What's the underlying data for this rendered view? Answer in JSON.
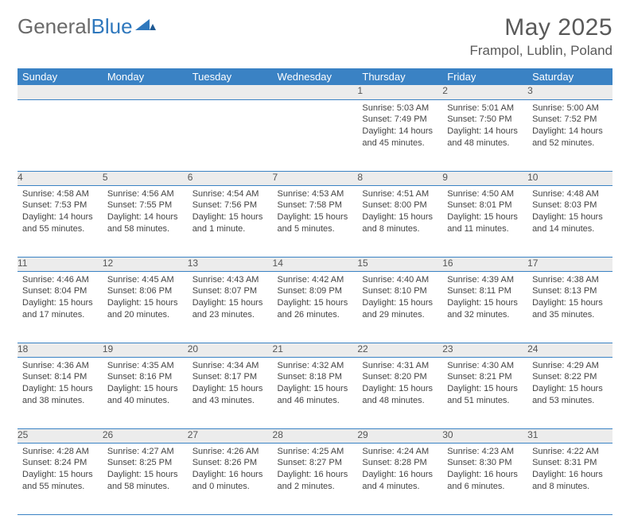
{
  "brand": {
    "part1": "General",
    "part2": "Blue"
  },
  "title": "May 2025",
  "location": "Frampol, Lublin, Poland",
  "colors": {
    "header_bg": "#3a82c4",
    "header_text": "#ffffff",
    "daynum_bg": "#ececec",
    "text": "#444444",
    "brand_gray": "#6a6a6a",
    "brand_blue": "#2f78bd",
    "divider": "#3a82c4"
  },
  "typography": {
    "title_fontsize": 30,
    "location_fontsize": 17,
    "header_fontsize": 13,
    "daynum_fontsize": 12,
    "body_fontsize": 11
  },
  "weekdays": [
    "Sunday",
    "Monday",
    "Tuesday",
    "Wednesday",
    "Thursday",
    "Friday",
    "Saturday"
  ],
  "weeks": [
    {
      "nums": [
        "",
        "",
        "",
        "",
        "1",
        "2",
        "3"
      ],
      "cells": [
        null,
        null,
        null,
        null,
        {
          "sunrise": "Sunrise: 5:03 AM",
          "sunset": "Sunset: 7:49 PM",
          "daylight": "Daylight: 14 hours and 45 minutes."
        },
        {
          "sunrise": "Sunrise: 5:01 AM",
          "sunset": "Sunset: 7:50 PM",
          "daylight": "Daylight: 14 hours and 48 minutes."
        },
        {
          "sunrise": "Sunrise: 5:00 AM",
          "sunset": "Sunset: 7:52 PM",
          "daylight": "Daylight: 14 hours and 52 minutes."
        }
      ]
    },
    {
      "nums": [
        "4",
        "5",
        "6",
        "7",
        "8",
        "9",
        "10"
      ],
      "cells": [
        {
          "sunrise": "Sunrise: 4:58 AM",
          "sunset": "Sunset: 7:53 PM",
          "daylight": "Daylight: 14 hours and 55 minutes."
        },
        {
          "sunrise": "Sunrise: 4:56 AM",
          "sunset": "Sunset: 7:55 PM",
          "daylight": "Daylight: 14 hours and 58 minutes."
        },
        {
          "sunrise": "Sunrise: 4:54 AM",
          "sunset": "Sunset: 7:56 PM",
          "daylight": "Daylight: 15 hours and 1 minute."
        },
        {
          "sunrise": "Sunrise: 4:53 AM",
          "sunset": "Sunset: 7:58 PM",
          "daylight": "Daylight: 15 hours and 5 minutes."
        },
        {
          "sunrise": "Sunrise: 4:51 AM",
          "sunset": "Sunset: 8:00 PM",
          "daylight": "Daylight: 15 hours and 8 minutes."
        },
        {
          "sunrise": "Sunrise: 4:50 AM",
          "sunset": "Sunset: 8:01 PM",
          "daylight": "Daylight: 15 hours and 11 minutes."
        },
        {
          "sunrise": "Sunrise: 4:48 AM",
          "sunset": "Sunset: 8:03 PM",
          "daylight": "Daylight: 15 hours and 14 minutes."
        }
      ]
    },
    {
      "nums": [
        "11",
        "12",
        "13",
        "14",
        "15",
        "16",
        "17"
      ],
      "cells": [
        {
          "sunrise": "Sunrise: 4:46 AM",
          "sunset": "Sunset: 8:04 PM",
          "daylight": "Daylight: 15 hours and 17 minutes."
        },
        {
          "sunrise": "Sunrise: 4:45 AM",
          "sunset": "Sunset: 8:06 PM",
          "daylight": "Daylight: 15 hours and 20 minutes."
        },
        {
          "sunrise": "Sunrise: 4:43 AM",
          "sunset": "Sunset: 8:07 PM",
          "daylight": "Daylight: 15 hours and 23 minutes."
        },
        {
          "sunrise": "Sunrise: 4:42 AM",
          "sunset": "Sunset: 8:09 PM",
          "daylight": "Daylight: 15 hours and 26 minutes."
        },
        {
          "sunrise": "Sunrise: 4:40 AM",
          "sunset": "Sunset: 8:10 PM",
          "daylight": "Daylight: 15 hours and 29 minutes."
        },
        {
          "sunrise": "Sunrise: 4:39 AM",
          "sunset": "Sunset: 8:11 PM",
          "daylight": "Daylight: 15 hours and 32 minutes."
        },
        {
          "sunrise": "Sunrise: 4:38 AM",
          "sunset": "Sunset: 8:13 PM",
          "daylight": "Daylight: 15 hours and 35 minutes."
        }
      ]
    },
    {
      "nums": [
        "18",
        "19",
        "20",
        "21",
        "22",
        "23",
        "24"
      ],
      "cells": [
        {
          "sunrise": "Sunrise: 4:36 AM",
          "sunset": "Sunset: 8:14 PM",
          "daylight": "Daylight: 15 hours and 38 minutes."
        },
        {
          "sunrise": "Sunrise: 4:35 AM",
          "sunset": "Sunset: 8:16 PM",
          "daylight": "Daylight: 15 hours and 40 minutes."
        },
        {
          "sunrise": "Sunrise: 4:34 AM",
          "sunset": "Sunset: 8:17 PM",
          "daylight": "Daylight: 15 hours and 43 minutes."
        },
        {
          "sunrise": "Sunrise: 4:32 AM",
          "sunset": "Sunset: 8:18 PM",
          "daylight": "Daylight: 15 hours and 46 minutes."
        },
        {
          "sunrise": "Sunrise: 4:31 AM",
          "sunset": "Sunset: 8:20 PM",
          "daylight": "Daylight: 15 hours and 48 minutes."
        },
        {
          "sunrise": "Sunrise: 4:30 AM",
          "sunset": "Sunset: 8:21 PM",
          "daylight": "Daylight: 15 hours and 51 minutes."
        },
        {
          "sunrise": "Sunrise: 4:29 AM",
          "sunset": "Sunset: 8:22 PM",
          "daylight": "Daylight: 15 hours and 53 minutes."
        }
      ]
    },
    {
      "nums": [
        "25",
        "26",
        "27",
        "28",
        "29",
        "30",
        "31"
      ],
      "cells": [
        {
          "sunrise": "Sunrise: 4:28 AM",
          "sunset": "Sunset: 8:24 PM",
          "daylight": "Daylight: 15 hours and 55 minutes."
        },
        {
          "sunrise": "Sunrise: 4:27 AM",
          "sunset": "Sunset: 8:25 PM",
          "daylight": "Daylight: 15 hours and 58 minutes."
        },
        {
          "sunrise": "Sunrise: 4:26 AM",
          "sunset": "Sunset: 8:26 PM",
          "daylight": "Daylight: 16 hours and 0 minutes."
        },
        {
          "sunrise": "Sunrise: 4:25 AM",
          "sunset": "Sunset: 8:27 PM",
          "daylight": "Daylight: 16 hours and 2 minutes."
        },
        {
          "sunrise": "Sunrise: 4:24 AM",
          "sunset": "Sunset: 8:28 PM",
          "daylight": "Daylight: 16 hours and 4 minutes."
        },
        {
          "sunrise": "Sunrise: 4:23 AM",
          "sunset": "Sunset: 8:30 PM",
          "daylight": "Daylight: 16 hours and 6 minutes."
        },
        {
          "sunrise": "Sunrise: 4:22 AM",
          "sunset": "Sunset: 8:31 PM",
          "daylight": "Daylight: 16 hours and 8 minutes."
        }
      ]
    }
  ]
}
